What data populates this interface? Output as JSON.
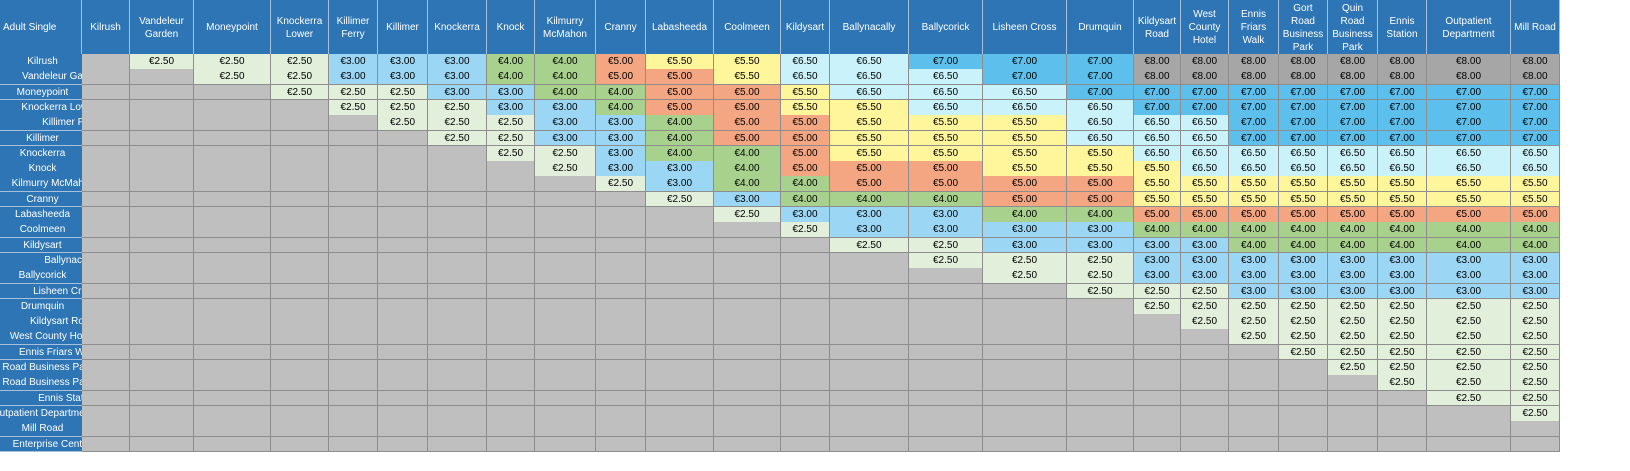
{
  "corner_label": "Adult Single",
  "columns": [
    "Kilrush",
    "Vandeleur Garden",
    "Moneypoint",
    "Knockerra Lower",
    "Killimer Ferry",
    "Killimer",
    "Knockerra",
    "Knock",
    "Kilmurry McMahon",
    "Cranny",
    "Labasheeda",
    "Coolmeen",
    "Kildysart",
    "Ballynacally",
    "Ballycorick",
    "Lisheen Cross",
    "Drumquin",
    "Kildysart Road",
    "West County Hotel",
    "Ennis Friars Walk",
    "Gort Road Business Park",
    "Quin Road Business Park",
    "Ennis Station",
    "Outpatient Department",
    "Mill Road"
  ],
  "rows": [
    {
      "label": "Kilrush",
      "fares": [
        "€2.50",
        "€2.50",
        "€2.50",
        "€3.00",
        "€3.00",
        "€3.00",
        "€4.00",
        "€4.00",
        "€5.00",
        "€5.50",
        "€5.50",
        "€6.50",
        "€6.50",
        "€7.00",
        "€7.00",
        "€7.00",
        "€8.00",
        "€8.00",
        "€8.00",
        "€8.00",
        "€8.00",
        "€8.00",
        "€8.00",
        "€8.00"
      ]
    },
    {
      "label": "Vandeleur Garden",
      "fares": [
        "€2.50",
        "€2.50",
        "€3.00",
        "€3.00",
        "€3.00",
        "€4.00",
        "€4.00",
        "€5.00",
        "€5.00",
        "€5.50",
        "€6.50",
        "€6.50",
        "€6.50",
        "€7.00",
        "€7.00",
        "€8.00",
        "€8.00",
        "€8.00",
        "€8.00",
        "€8.00",
        "€8.00",
        "€8.00",
        "€8.00"
      ]
    },
    {
      "label": "Moneypoint",
      "fares": [
        "€2.50",
        "€2.50",
        "€2.50",
        "€3.00",
        "€3.00",
        "€4.00",
        "€4.00",
        "€5.00",
        "€5.00",
        "€5.50",
        "€6.50",
        "€6.50",
        "€6.50",
        "€7.00",
        "€7.00",
        "€7.00",
        "€7.00",
        "€7.00",
        "€7.00",
        "€7.00",
        "€7.00",
        "€7.00"
      ]
    },
    {
      "label": "Knockerra Lower",
      "fares": [
        "€2.50",
        "€2.50",
        "€2.50",
        "€3.00",
        "€3.00",
        "€4.00",
        "€5.00",
        "€5.00",
        "€5.50",
        "€5.50",
        "€6.50",
        "€6.50",
        "€6.50",
        "€7.00",
        "€7.00",
        "€7.00",
        "€7.00",
        "€7.00",
        "€7.00",
        "€7.00",
        "€7.00"
      ]
    },
    {
      "label": "Killimer Ferry",
      "fares": [
        "€2.50",
        "€2.50",
        "€2.50",
        "€3.00",
        "€3.00",
        "€4.00",
        "€5.00",
        "€5.00",
        "€5.50",
        "€5.50",
        "€5.50",
        "€6.50",
        "€6.50",
        "€6.50",
        "€7.00",
        "€7.00",
        "€7.00",
        "€7.00",
        "€7.00",
        "€7.00"
      ]
    },
    {
      "label": "Killimer",
      "fares": [
        "€2.50",
        "€2.50",
        "€3.00",
        "€3.00",
        "€4.00",
        "€5.00",
        "€5.00",
        "€5.50",
        "€5.50",
        "€5.50",
        "€6.50",
        "€6.50",
        "€6.50",
        "€7.00",
        "€7.00",
        "€7.00",
        "€7.00",
        "€7.00",
        "€7.00"
      ]
    },
    {
      "label": "Knockerra",
      "fares": [
        "€2.50",
        "€2.50",
        "€3.00",
        "€4.00",
        "€4.00",
        "€5.00",
        "€5.50",
        "€5.50",
        "€5.50",
        "€5.50",
        "€6.50",
        "€6.50",
        "€6.50",
        "€6.50",
        "€6.50",
        "€6.50",
        "€6.50",
        "€6.50"
      ]
    },
    {
      "label": "Knock",
      "fares": [
        "€2.50",
        "€3.00",
        "€3.00",
        "€4.00",
        "€5.00",
        "€5.00",
        "€5.00",
        "€5.50",
        "€5.50",
        "€5.50",
        "€6.50",
        "€6.50",
        "€6.50",
        "€6.50",
        "€6.50",
        "€6.50",
        "€6.50"
      ]
    },
    {
      "label": "Kilmurry McMahon",
      "fares": [
        "€2.50",
        "€3.00",
        "€4.00",
        "€4.00",
        "€5.00",
        "€5.00",
        "€5.00",
        "€5.00",
        "€5.50",
        "€5.50",
        "€5.50",
        "€5.50",
        "€5.50",
        "€5.50",
        "€5.50",
        "€5.50"
      ]
    },
    {
      "label": "Cranny",
      "fares": [
        "€2.50",
        "€3.00",
        "€4.00",
        "€4.00",
        "€4.00",
        "€5.00",
        "€5.00",
        "€5.50",
        "€5.50",
        "€5.50",
        "€5.50",
        "€5.50",
        "€5.50",
        "€5.50",
        "€5.50"
      ]
    },
    {
      "label": "Labasheeda",
      "fares": [
        "€2.50",
        "€3.00",
        "€3.00",
        "€3.00",
        "€4.00",
        "€4.00",
        "€5.00",
        "€5.00",
        "€5.00",
        "€5.00",
        "€5.00",
        "€5.00",
        "€5.00",
        "€5.00"
      ]
    },
    {
      "label": "Coolmeen",
      "fares": [
        "€2.50",
        "€3.00",
        "€3.00",
        "€3.00",
        "€3.00",
        "€4.00",
        "€4.00",
        "€4.00",
        "€4.00",
        "€4.00",
        "€4.00",
        "€4.00",
        "€4.00"
      ]
    },
    {
      "label": "Kildysart",
      "fares": [
        "€2.50",
        "€2.50",
        "€3.00",
        "€3.00",
        "€3.00",
        "€3.00",
        "€4.00",
        "€4.00",
        "€4.00",
        "€4.00",
        "€4.00",
        "€4.00"
      ]
    },
    {
      "label": "Ballynacally",
      "fares": [
        "€2.50",
        "€2.50",
        "€2.50",
        "€3.00",
        "€3.00",
        "€3.00",
        "€3.00",
        "€3.00",
        "€3.00",
        "€3.00",
        "€3.00"
      ]
    },
    {
      "label": "Ballycorick",
      "fares": [
        "€2.50",
        "€2.50",
        "€3.00",
        "€3.00",
        "€3.00",
        "€3.00",
        "€3.00",
        "€3.00",
        "€3.00",
        "€3.00"
      ]
    },
    {
      "label": "Lisheen Cross",
      "fares": [
        "€2.50",
        "€2.50",
        "€2.50",
        "€3.00",
        "€3.00",
        "€3.00",
        "€3.00",
        "€3.00",
        "€3.00"
      ]
    },
    {
      "label": "Drumquin",
      "fares": [
        "€2.50",
        "€2.50",
        "€2.50",
        "€2.50",
        "€2.50",
        "€2.50",
        "€2.50",
        "€2.50"
      ]
    },
    {
      "label": "Kildysart Road",
      "fares": [
        "€2.50",
        "€2.50",
        "€2.50",
        "€2.50",
        "€2.50",
        "€2.50",
        "€2.50"
      ]
    },
    {
      "label": "West County Hotel",
      "fares": [
        "€2.50",
        "€2.50",
        "€2.50",
        "€2.50",
        "€2.50",
        "€2.50"
      ]
    },
    {
      "label": "Ennis Friars Walk",
      "fares": [
        "€2.50",
        "€2.50",
        "€2.50",
        "€2.50",
        "€2.50"
      ]
    },
    {
      "label": "Gort Road Business Park",
      "fares": [
        "€2.50",
        "€2.50",
        "€2.50",
        "€2.50"
      ]
    },
    {
      "label": "Quin Road Business Park",
      "fares": [
        "€2.50",
        "€2.50",
        "€2.50"
      ]
    },
    {
      "label": "Ennis Station",
      "fares": [
        "€2.50",
        "€2.50"
      ]
    },
    {
      "label": "Outpatient Department",
      "fares": [
        "€2.50"
      ]
    },
    {
      "label": "Mill Road",
      "fares": []
    },
    {
      "label": "Enterprise Centre",
      "fares": []
    }
  ],
  "colors": {
    "header_bg": "#2e75b6",
    "header_text": "#ffffff",
    "empty_cell": "#bfbfbf",
    "€2.50": "#e2efda",
    "€3.00": "#9bd7f5",
    "€4.00": "#a9d18e",
    "€5.00": "#f4a582",
    "€5.50": "#fff59a",
    "€6.50": "#c9f2fb",
    "€7.00": "#5dc0ec",
    "€8.00": "#a6a6a6"
  }
}
